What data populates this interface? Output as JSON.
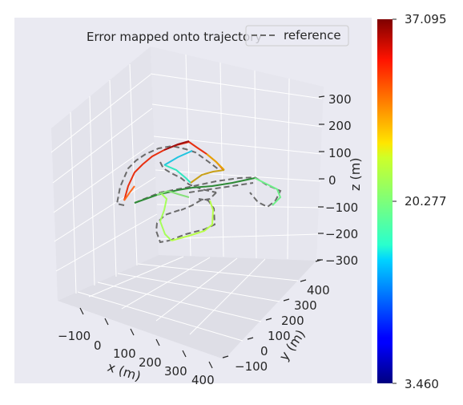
{
  "chart_data": [
    {
      "type": "line",
      "projection": "3d",
      "title": "Error mapped onto trajectory",
      "xlabel": "x (m)",
      "ylabel": "y (m)",
      "zlabel": "z (m)",
      "xticks": [
        "−100",
        "0",
        "100",
        "200",
        "300",
        "400"
      ],
      "yticks": [
        "−100",
        "0",
        "100",
        "200",
        "300",
        "400"
      ],
      "zticks": [
        "300",
        "200",
        "100",
        "0",
        "−100",
        "−200",
        "−300"
      ],
      "legend": {
        "entries": [
          "reference"
        ],
        "position": "top-right",
        "style": "dashed gray"
      },
      "grid": true,
      "series": [
        {
          "name": "reference",
          "style": "dashed",
          "color": "#6b6b6b"
        }
      ],
      "trajectory_color_by": "error",
      "colormap": "jet"
    },
    {
      "type": "colorbar",
      "colormap": "jet",
      "ticks": [
        "37.095",
        "20.277",
        "3.460"
      ],
      "range": [
        3.46,
        37.095
      ]
    }
  ]
}
